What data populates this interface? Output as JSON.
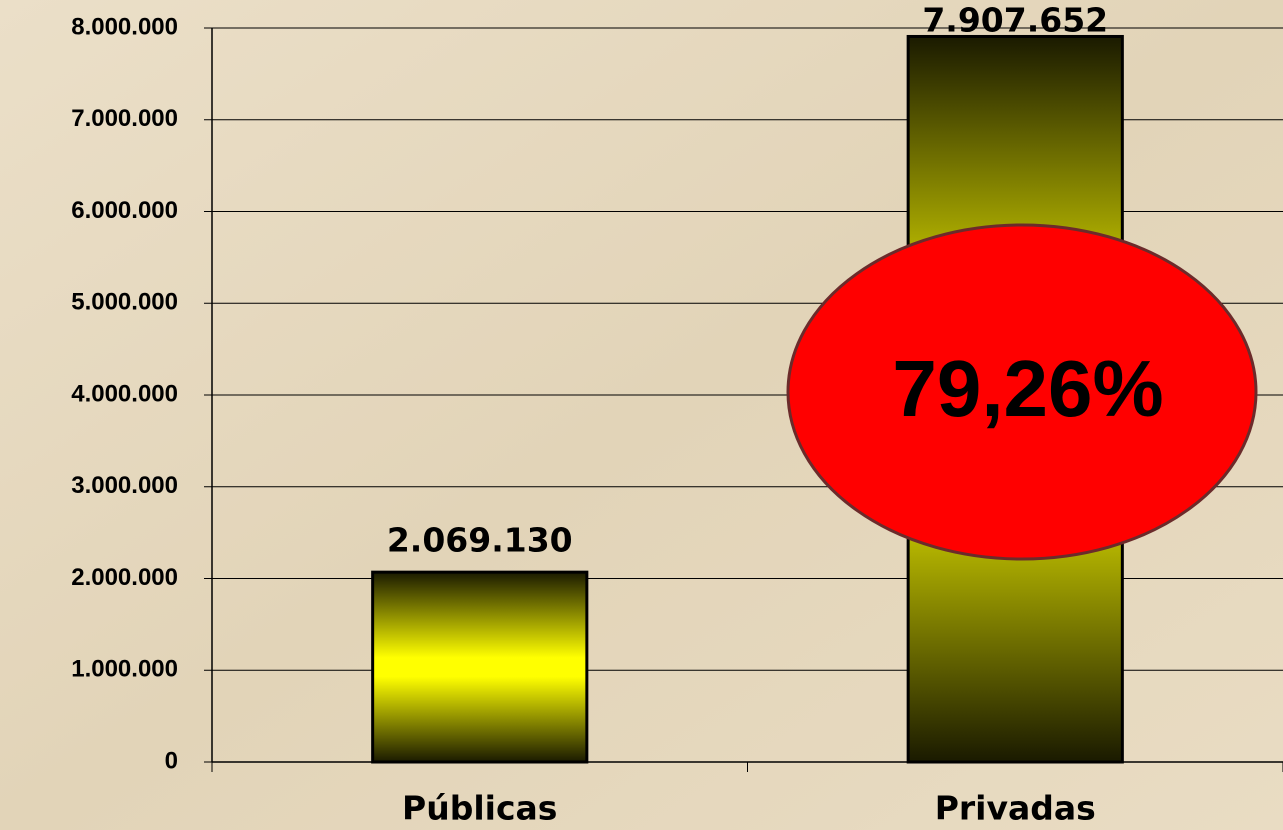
{
  "chart_data": {
    "type": "bar",
    "categories": [
      "Públicas",
      "Privadas"
    ],
    "values": [
      2069130,
      7907652
    ],
    "value_labels": [
      "2.069.130",
      "7.907.652"
    ],
    "ylim": [
      0,
      8000000
    ],
    "yticks": [
      0,
      {
        "value": 1000000,
        "label": "1.000.000"
      },
      {
        "value": 2000000,
        "label": "2.000.000"
      },
      {
        "value": 3000000,
        "label": "3.000.000"
      },
      {
        "value": 4000000,
        "label": "4.000.000"
      },
      {
        "value": 5000000,
        "label": "5.000.000"
      },
      {
        "value": 6000000,
        "label": "6.000.000"
      },
      {
        "value": 7000000,
        "label": "7.000.000"
      },
      {
        "value": 8000000,
        "label": "8.000.000"
      }
    ],
    "grid": true,
    "color": "#ffff00",
    "annotation": "79,26%"
  }
}
